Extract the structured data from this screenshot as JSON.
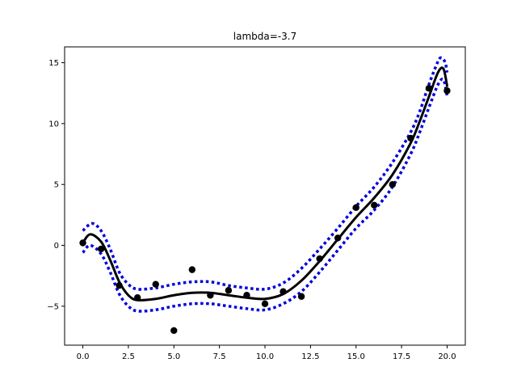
{
  "chart_data": {
    "type": "scatter",
    "title": "lambda=-3.7",
    "xlabel": "",
    "ylabel": "",
    "xlim": [
      -1.0,
      21.0
    ],
    "ylim": [
      -8.2,
      16.3
    ],
    "grid": false,
    "x_ticks": [
      0.0,
      2.5,
      5.0,
      7.5,
      10.0,
      12.5,
      15.0,
      17.5,
      20.0
    ],
    "x_tick_labels": [
      "0.0",
      "2.5",
      "5.0",
      "7.5",
      "10.0",
      "12.5",
      "15.0",
      "17.5",
      "20.0"
    ],
    "y_ticks": [
      -5,
      0,
      5,
      10,
      15
    ],
    "y_tick_labels": [
      "−5",
      "0",
      "5",
      "10",
      "15"
    ],
    "series": [
      {
        "kind": "points",
        "color": "#000000",
        "x": [
          0,
          1,
          2,
          3,
          4,
          5,
          6,
          7,
          8,
          9,
          10,
          11,
          12,
          13,
          14,
          15,
          16,
          17,
          18,
          19,
          20
        ],
        "y": [
          0.2,
          -0.3,
          -3.3,
          -4.3,
          -3.2,
          -7.0,
          -2.0,
          -4.1,
          -3.7,
          -4.1,
          -4.8,
          -3.8,
          -4.2,
          -1.1,
          0.6,
          3.1,
          3.3,
          5.0,
          8.8,
          12.9,
          12.7
        ]
      },
      {
        "kind": "fit-line",
        "color": "#000000",
        "x": [
          0,
          0.4,
          1,
          1.5,
          2,
          2.5,
          3,
          4,
          5,
          6,
          7,
          8,
          9,
          10,
          11,
          12,
          13,
          14,
          15,
          16,
          17,
          18,
          18.5,
          19,
          19.5,
          19.8,
          20
        ],
        "y": [
          0.2,
          0.9,
          0.3,
          -1.2,
          -3.0,
          -4.1,
          -4.5,
          -4.4,
          -4.1,
          -3.9,
          -3.9,
          -4.1,
          -4.3,
          -4.4,
          -4.0,
          -2.9,
          -1.3,
          0.5,
          2.3,
          3.9,
          5.8,
          8.4,
          10.2,
          12.2,
          14.2,
          14.5,
          13.1
        ]
      },
      {
        "kind": "upper-band",
        "color": "#0000dd",
        "x": [
          0,
          0.5,
          1,
          1.5,
          2,
          2.5,
          3,
          4,
          5,
          6,
          7,
          8,
          9,
          10,
          11,
          12,
          13,
          14,
          15,
          16,
          17,
          18,
          18.5,
          19,
          19.5,
          19.7,
          19.9,
          20
        ],
        "y": [
          1.2,
          1.8,
          1.2,
          -0.3,
          -2.2,
          -3.2,
          -3.6,
          -3.5,
          -3.2,
          -3.0,
          -3.0,
          -3.3,
          -3.5,
          -3.6,
          -3.1,
          -1.9,
          -0.3,
          1.4,
          3.2,
          4.8,
          6.8,
          9.3,
          11.0,
          13.2,
          15.1,
          15.4,
          15.0,
          14.2
        ]
      },
      {
        "kind": "lower-band",
        "color": "#0000dd",
        "x": [
          0,
          0.4,
          1,
          1.5,
          2,
          2.5,
          3,
          4,
          5,
          6,
          7,
          8,
          9,
          10,
          11,
          12,
          13,
          14,
          15,
          16,
          17,
          18,
          18.5,
          19,
          19.5,
          19.8,
          20
        ],
        "y": [
          -0.6,
          0.0,
          -0.7,
          -2.2,
          -4.0,
          -5.0,
          -5.4,
          -5.3,
          -5.0,
          -4.8,
          -4.8,
          -5.0,
          -5.2,
          -5.3,
          -4.8,
          -3.8,
          -2.2,
          -0.4,
          1.4,
          2.9,
          4.8,
          7.5,
          9.3,
          11.3,
          13.2,
          13.6,
          12.3
        ]
      }
    ]
  }
}
